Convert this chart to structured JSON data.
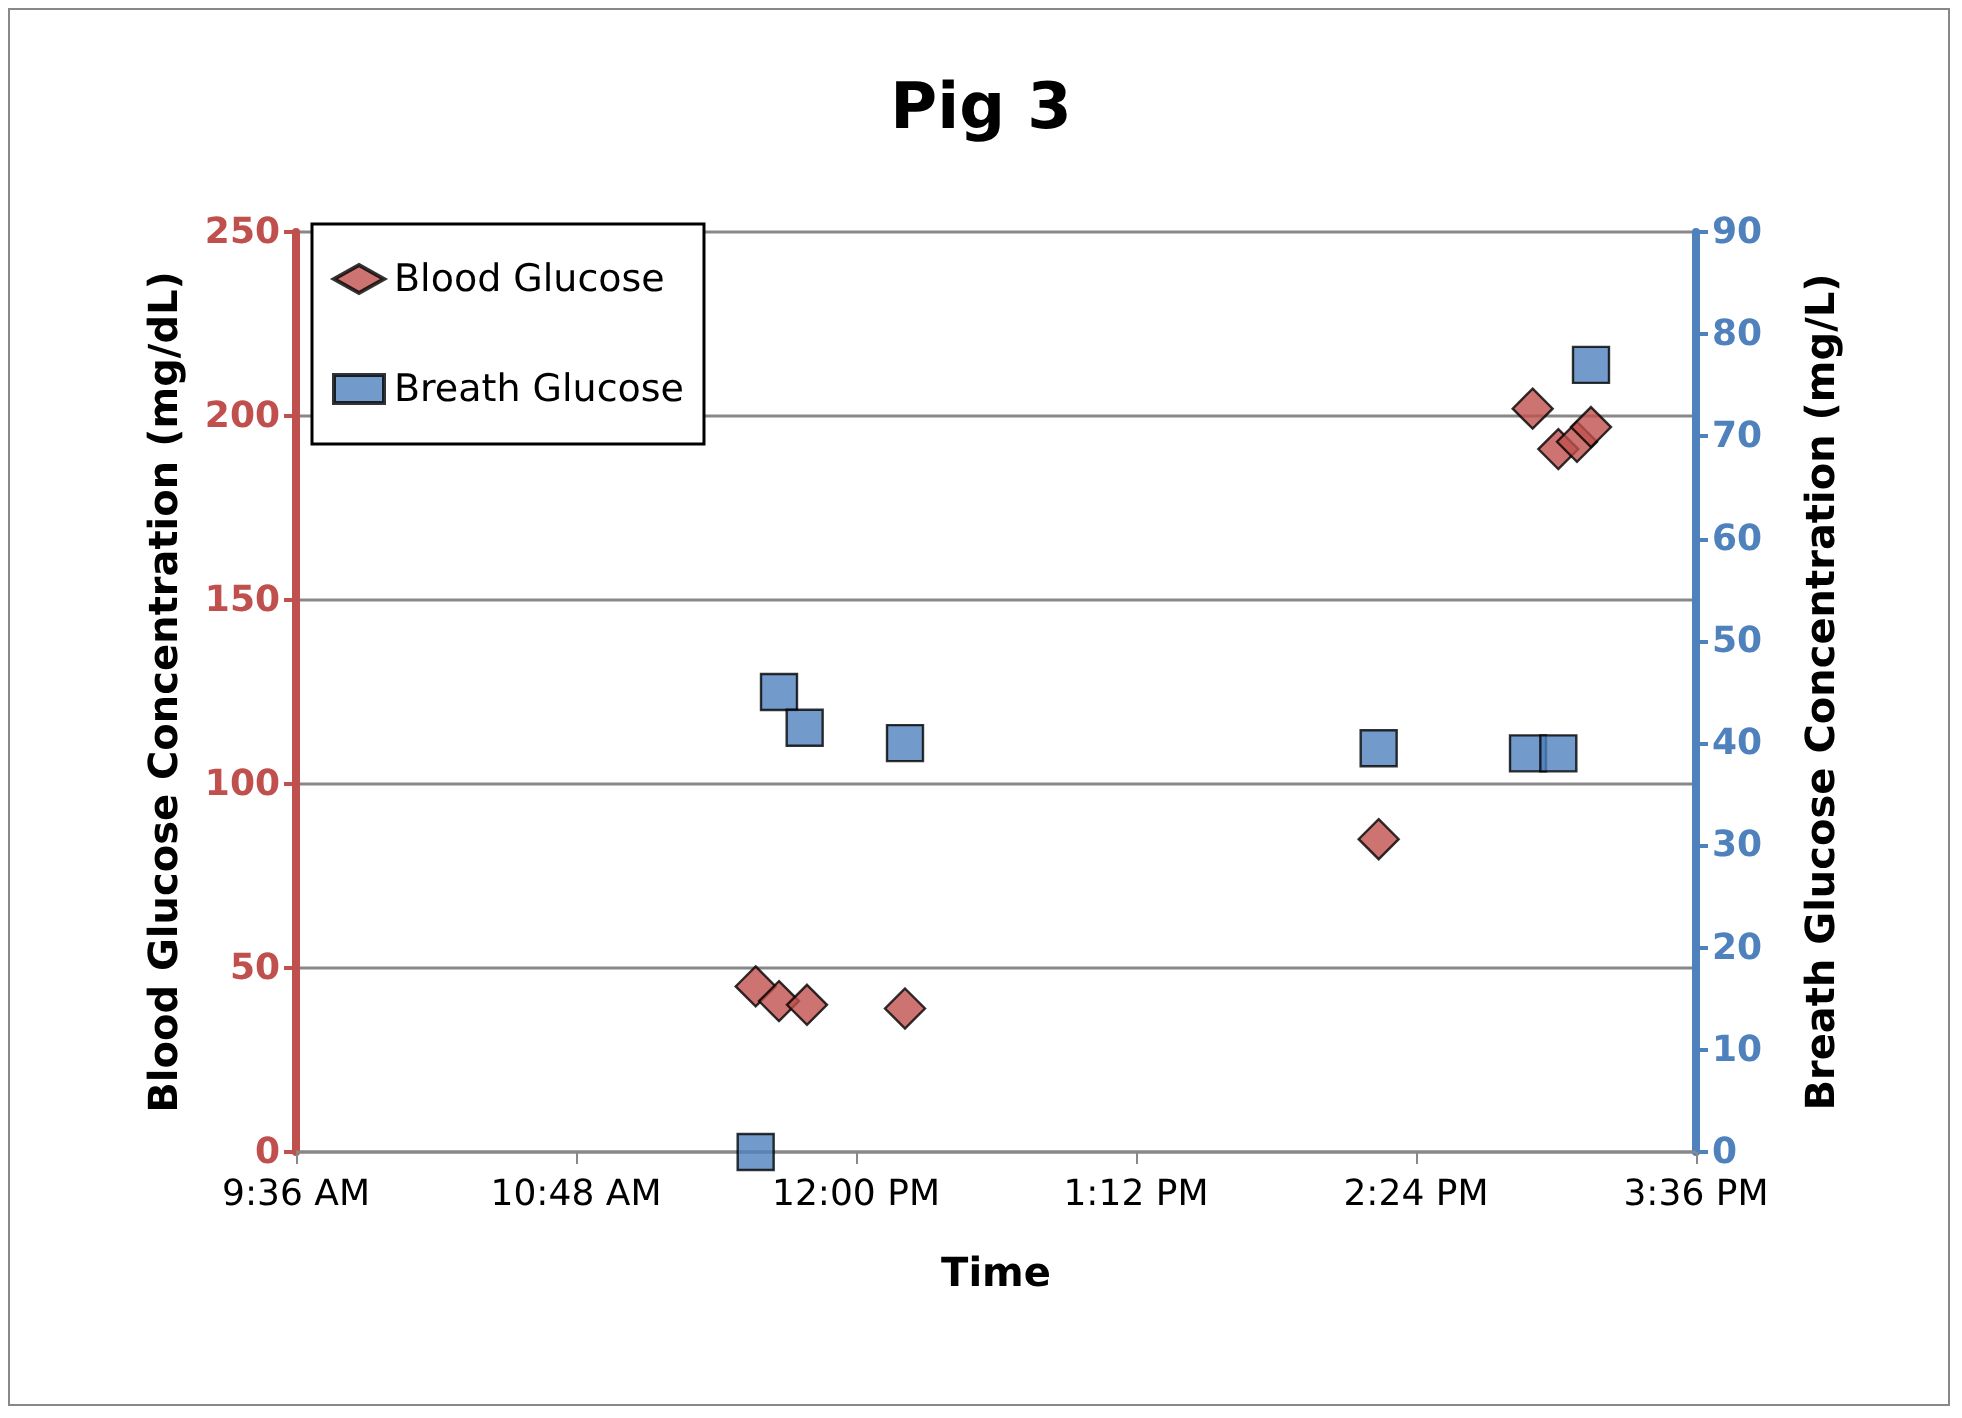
{
  "chart_data": {
    "type": "scatter",
    "title": "Pig 3",
    "xlabel": "Time",
    "ylabel": "Blood Glucose Concentration (mg/dL)",
    "y2label": "Breath Glucose Concentration (mg/L)",
    "xlim": [
      9.6,
      15.6
    ],
    "xticks": [
      {
        "value": 9.6,
        "label": "9:36 AM"
      },
      {
        "value": 10.8,
        "label": "10:48 AM"
      },
      {
        "value": 12,
        "label": "12:00 PM"
      },
      {
        "value": 13.2,
        "label": "1:12 PM"
      },
      {
        "value": 14.4,
        "label": "2:24 PM"
      },
      {
        "value": 15.6,
        "label": "3:36 PM"
      }
    ],
    "ylim": [
      0,
      250
    ],
    "yticks": [
      0,
      50,
      100,
      150,
      200,
      250
    ],
    "y2lim": [
      0,
      90
    ],
    "y2ticks": [
      0,
      10,
      20,
      30,
      40,
      50,
      60,
      70,
      80,
      90
    ],
    "grid": "y",
    "legend": "top left",
    "series": [
      {
        "name": "Blood Glucose",
        "color": "#c0504d",
        "marker": "diamond",
        "x": [
          11.57,
          11.67,
          11.79,
          12.21,
          14.24,
          14.9,
          15.01,
          15.09,
          15.15
        ],
        "values": [
          45,
          41,
          40,
          39,
          85,
          202,
          191,
          193,
          197
        ]
      },
      {
        "name": "Breath Glucose",
        "color": "#4f81bd",
        "marker": "square",
        "axis": "y2",
        "x": [
          11.57,
          11.67,
          11.78,
          12.21,
          14.24,
          14.88,
          15.01,
          15.15
        ],
        "values": [
          0,
          45,
          41.5,
          40,
          39.5,
          39,
          39,
          77
        ]
      }
    ]
  }
}
